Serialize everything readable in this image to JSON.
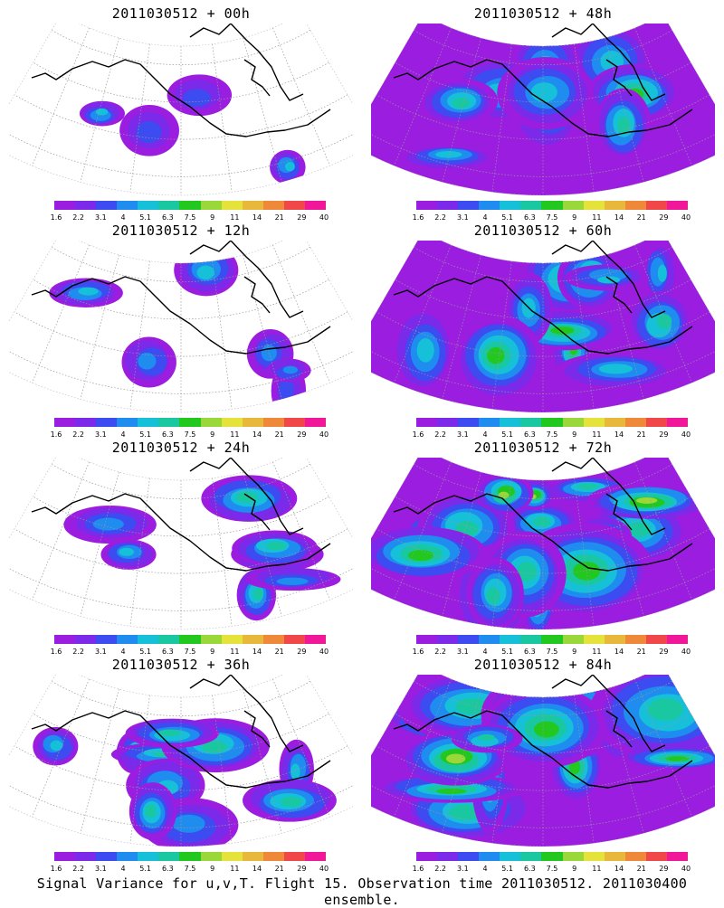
{
  "panels": [
    {
      "title": "2011030512 + 00h",
      "level": 0
    },
    {
      "title": "2011030512 + 48h",
      "level": 4
    },
    {
      "title": "2011030512 + 12h",
      "level": 1
    },
    {
      "title": "2011030512 + 60h",
      "level": 5
    },
    {
      "title": "2011030512 + 24h",
      "level": 2
    },
    {
      "title": "2011030512 + 72h",
      "level": 6
    },
    {
      "title": "2011030512 + 36h",
      "level": 3
    },
    {
      "title": "2011030512 + 84h",
      "level": 7
    }
  ],
  "colorbar": {
    "labels": [
      "1.6",
      "2.2",
      "3.1",
      "4",
      "5.1",
      "6.3",
      "7.5",
      "9",
      "11",
      "14",
      "21",
      "29",
      "40"
    ],
    "colors": [
      "#9b1de0",
      "#7a2ae8",
      "#3c4cf0",
      "#1f8cf0",
      "#16c0d8",
      "#19c8a0",
      "#22c820",
      "#9ad83a",
      "#e6e23c",
      "#e8b83a",
      "#f0883a",
      "#f04848",
      "#f01898"
    ]
  },
  "footer": "Signal Variance for u,v,T. Flight 15. Observation time 2011030512. 2011030400 ensemble."
}
